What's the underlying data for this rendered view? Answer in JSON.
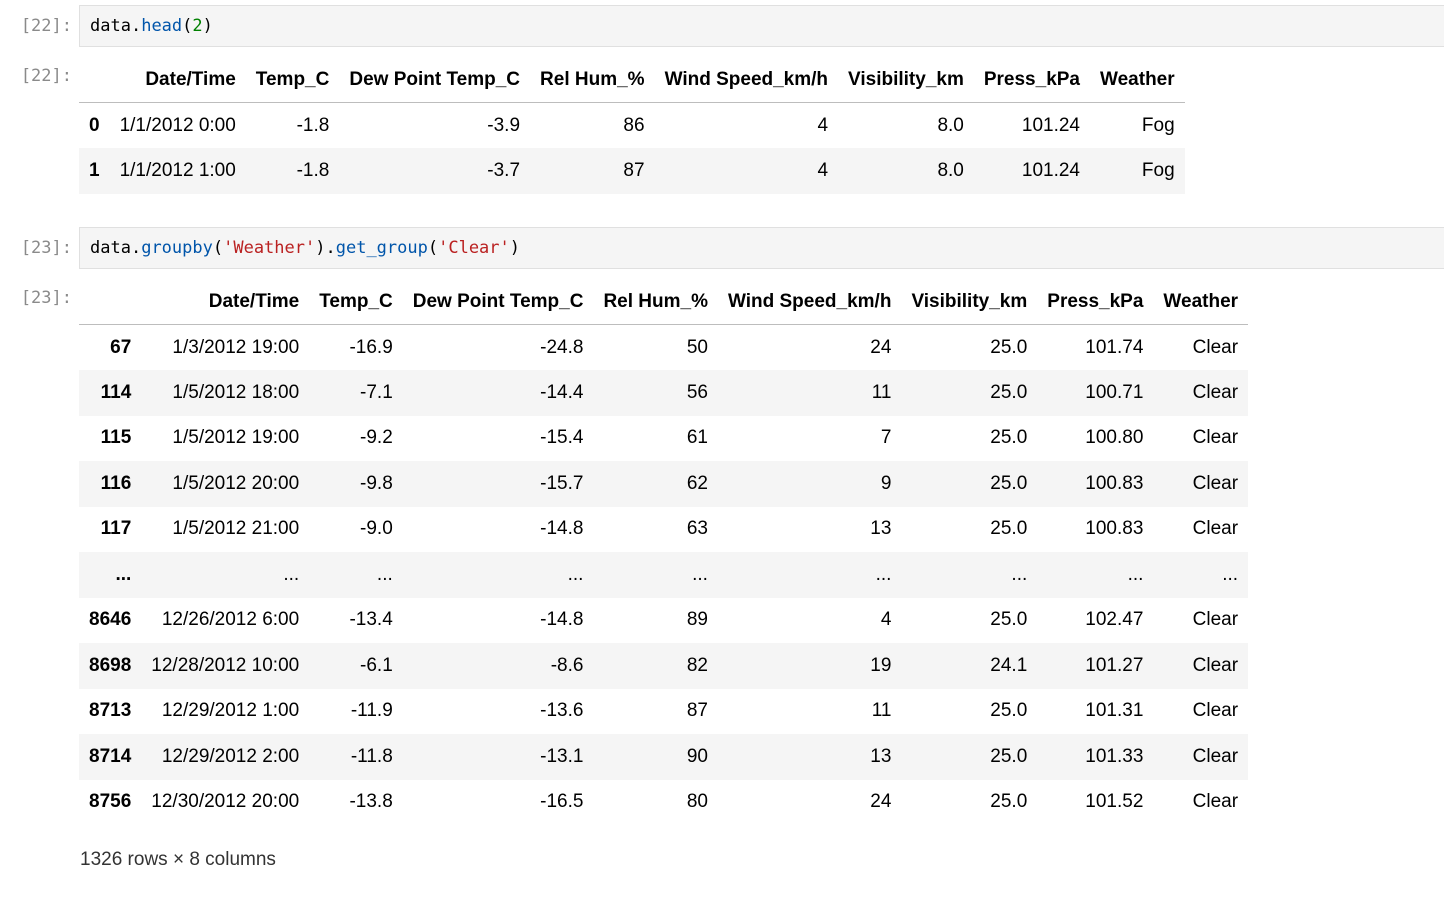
{
  "cells": [
    {
      "prompt_in": "[22]:",
      "prompt_out": "[22]:",
      "code": {
        "obj": "data",
        "dot": ".",
        "fn": "head",
        "open": "(",
        "arg": "2",
        "close": ")"
      }
    },
    {
      "prompt_in": "[23]:",
      "prompt_out": "[23]:",
      "code": {
        "obj": "data",
        "dot1": ".",
        "fn1": "groupby",
        "open1": "(",
        "arg1": "'Weather'",
        "close1": ")",
        "dot2": ".",
        "fn2": "get_group",
        "open2": "(",
        "arg2": "'Clear'",
        "close2": ")"
      }
    }
  ],
  "columns": [
    "Date/Time",
    "Temp_C",
    "Dew Point Temp_C",
    "Rel Hum_%",
    "Wind Speed_km/h",
    "Visibility_km",
    "Press_kPa",
    "Weather"
  ],
  "head_rows": [
    {
      "index": "0",
      "values": [
        "1/1/2012 0:00",
        "-1.8",
        "-3.9",
        "86",
        "4",
        "8.0",
        "101.24",
        "Fog"
      ]
    },
    {
      "index": "1",
      "values": [
        "1/1/2012 1:00",
        "-1.8",
        "-3.7",
        "87",
        "4",
        "8.0",
        "101.24",
        "Fog"
      ]
    }
  ],
  "group_rows": [
    {
      "index": "67",
      "values": [
        "1/3/2012 19:00",
        "-16.9",
        "-24.8",
        "50",
        "24",
        "25.0",
        "101.74",
        "Clear"
      ]
    },
    {
      "index": "114",
      "values": [
        "1/5/2012 18:00",
        "-7.1",
        "-14.4",
        "56",
        "11",
        "25.0",
        "100.71",
        "Clear"
      ]
    },
    {
      "index": "115",
      "values": [
        "1/5/2012 19:00",
        "-9.2",
        "-15.4",
        "61",
        "7",
        "25.0",
        "100.80",
        "Clear"
      ]
    },
    {
      "index": "116",
      "values": [
        "1/5/2012 20:00",
        "-9.8",
        "-15.7",
        "62",
        "9",
        "25.0",
        "100.83",
        "Clear"
      ]
    },
    {
      "index": "117",
      "values": [
        "1/5/2012 21:00",
        "-9.0",
        "-14.8",
        "63",
        "13",
        "25.0",
        "100.83",
        "Clear"
      ]
    },
    {
      "index": "...",
      "values": [
        "...",
        "...",
        "...",
        "...",
        "...",
        "...",
        "...",
        "..."
      ]
    },
    {
      "index": "8646",
      "values": [
        "12/26/2012 6:00",
        "-13.4",
        "-14.8",
        "89",
        "4",
        "25.0",
        "102.47",
        "Clear"
      ]
    },
    {
      "index": "8698",
      "values": [
        "12/28/2012 10:00",
        "-6.1",
        "-8.6",
        "82",
        "19",
        "24.1",
        "101.27",
        "Clear"
      ]
    },
    {
      "index": "8713",
      "values": [
        "12/29/2012 1:00",
        "-11.9",
        "-13.6",
        "87",
        "11",
        "25.0",
        "101.31",
        "Clear"
      ]
    },
    {
      "index": "8714",
      "values": [
        "12/29/2012 2:00",
        "-11.8",
        "-13.1",
        "90",
        "13",
        "25.0",
        "101.33",
        "Clear"
      ]
    },
    {
      "index": "8756",
      "values": [
        "12/30/2012 20:00",
        "-13.8",
        "-16.5",
        "80",
        "24",
        "25.0",
        "101.52",
        "Clear"
      ]
    }
  ],
  "footer": "1326 rows × 8 columns",
  "colors": {
    "prompt": "#8a8a8a",
    "function": "#0055aa",
    "number": "#008000",
    "string": "#ba2121",
    "stripe": "#f5f5f5"
  }
}
